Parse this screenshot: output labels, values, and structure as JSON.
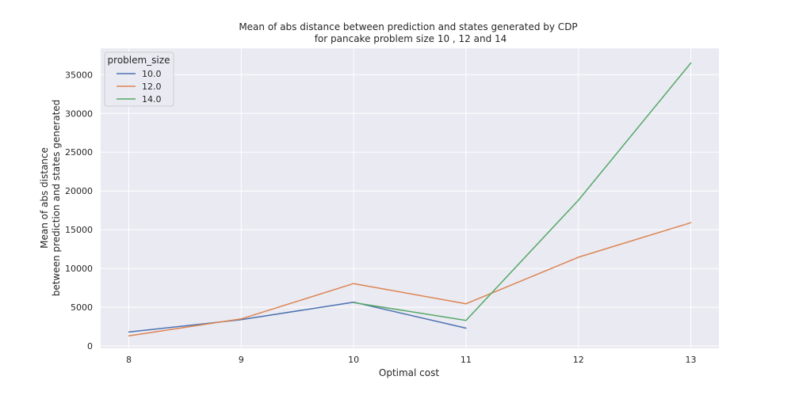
{
  "chart_data": {
    "type": "line",
    "title_lines": [
      "Mean of abs distance between prediction and states generated by CDP",
      "for pancake problem size 10 , 12 and 14"
    ],
    "xlabel": "Optimal cost",
    "ylabel_lines": [
      "Mean of abs distance",
      "between prediction and states generated"
    ],
    "x_ticks": [
      "8",
      "9",
      "10",
      "11",
      "12",
      "13"
    ],
    "y_ticks": [
      "0",
      "5000",
      "10000",
      "15000",
      "20000",
      "25000",
      "30000",
      "35000"
    ],
    "xlim": [
      7.75,
      13.25
    ],
    "ylim": [
      -300,
      38400
    ],
    "grid": true,
    "legend": {
      "title": "problem_size",
      "placement": "top-left"
    },
    "series": [
      {
        "name": "10.0",
        "color": "#4c72b0",
        "points": [
          [
            8,
            1800
          ],
          [
            9,
            3400
          ],
          [
            10,
            5650
          ],
          [
            11,
            2300
          ]
        ]
      },
      {
        "name": "12.0",
        "color": "#dd8452",
        "points": [
          [
            8,
            1300
          ],
          [
            9,
            3500
          ],
          [
            10,
            8050
          ],
          [
            11,
            5450
          ],
          [
            12,
            11450
          ],
          [
            13,
            15900
          ]
        ]
      },
      {
        "name": "14.0",
        "color": "#55a868",
        "points": [
          [
            10,
            5600
          ],
          [
            11,
            3300
          ],
          [
            12,
            18800
          ],
          [
            13,
            36500
          ]
        ]
      }
    ]
  }
}
